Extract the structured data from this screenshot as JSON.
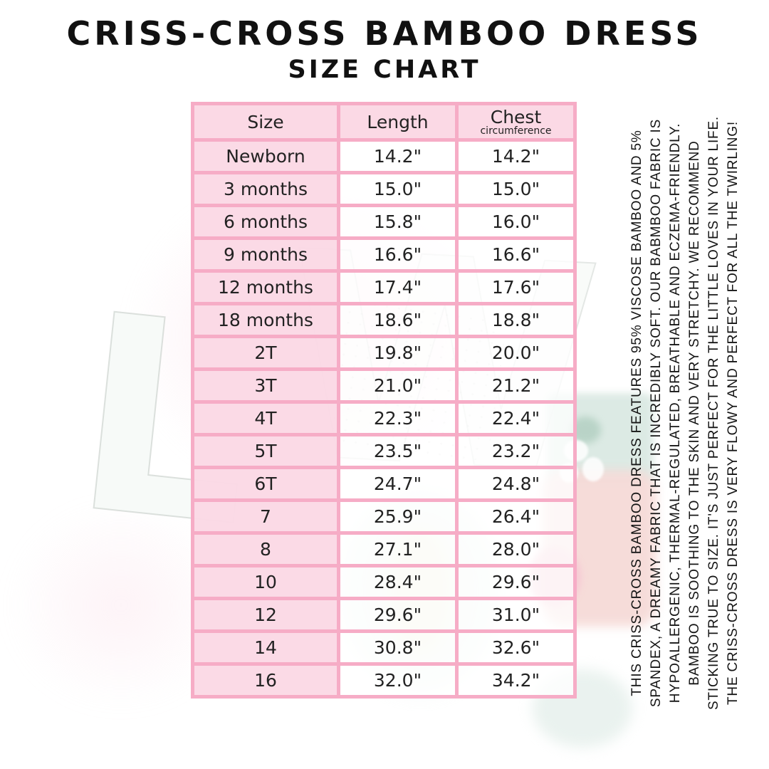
{
  "title": "CRISS-CROSS BAMBOO DRESS",
  "subtitle": "SIZE CHART",
  "table": {
    "headers": {
      "size": "Size",
      "length": "Length",
      "chest": "Chest",
      "chest_sub": "circumference"
    },
    "rows": [
      {
        "size": "Newborn",
        "length": "14.2\"",
        "chest": "14.2\""
      },
      {
        "size": "3 months",
        "length": "15.0\"",
        "chest": "15.0\""
      },
      {
        "size": "6 months",
        "length": "15.8\"",
        "chest": "16.0\""
      },
      {
        "size": "9 months",
        "length": "16.6\"",
        "chest": "16.6\""
      },
      {
        "size": "12 months",
        "length": "17.4\"",
        "chest": "17.6\""
      },
      {
        "size": "18 months",
        "length": "18.6\"",
        "chest": "18.8\""
      },
      {
        "size": "2T",
        "length": "19.8\"",
        "chest": "20.0\""
      },
      {
        "size": "3T",
        "length": "21.0\"",
        "chest": "21.2\""
      },
      {
        "size": "4T",
        "length": "22.3\"",
        "chest": "22.4\""
      },
      {
        "size": "5T",
        "length": "23.5\"",
        "chest": "23.2\""
      },
      {
        "size": "6T",
        "length": "24.7\"",
        "chest": "24.8\""
      },
      {
        "size": "7",
        "length": "25.9\"",
        "chest": "26.4\""
      },
      {
        "size": "8",
        "length": "27.1\"",
        "chest": "28.0\""
      },
      {
        "size": "10",
        "length": "28.4\"",
        "chest": "29.6\""
      },
      {
        "size": "12",
        "length": "29.6\"",
        "chest": "31.0\""
      },
      {
        "size": "14",
        "length": "30.8\"",
        "chest": "32.6\""
      },
      {
        "size": "16",
        "length": "32.0\"",
        "chest": "34.2\""
      }
    ]
  },
  "side_note": {
    "lines": [
      "THIS CRISS-CROSS BAMBOO DRESS FEATURES 95% VISCOSE BAMBOO AND 5%",
      "SPANDEX, A DREAMY FABRIC THAT IS INCREDIBLY SOFT. OUR BABMBOO FABRIC IS",
      "HYPOALLERGENIC, THERMAL-REGULATED, BREATHABLE AND ECZEMA-FRIENDLY.",
      "BAMBOO IS SOOTHING TO THE SKIN AND VERY STRETCHY. WE RECOMMEND",
      "STICKING TRUE TO SIZE. IT'S JUST PERFECT FOR THE LITTLE LOVES IN YOUR LIFE.",
      "THE CRISS-CROSS DRESS IS VERY FLOWY AND PERFECT FOR ALL THE TWIRLING!"
    ]
  },
  "watermark": {
    "letters": "LW"
  },
  "colors": {
    "table_border_pink": "#f6acc6",
    "cell_pink": "#fbd9e5",
    "teal_patch": "#d9e8e2",
    "rose_patch": "#f6dbd8",
    "text": "#222222"
  }
}
